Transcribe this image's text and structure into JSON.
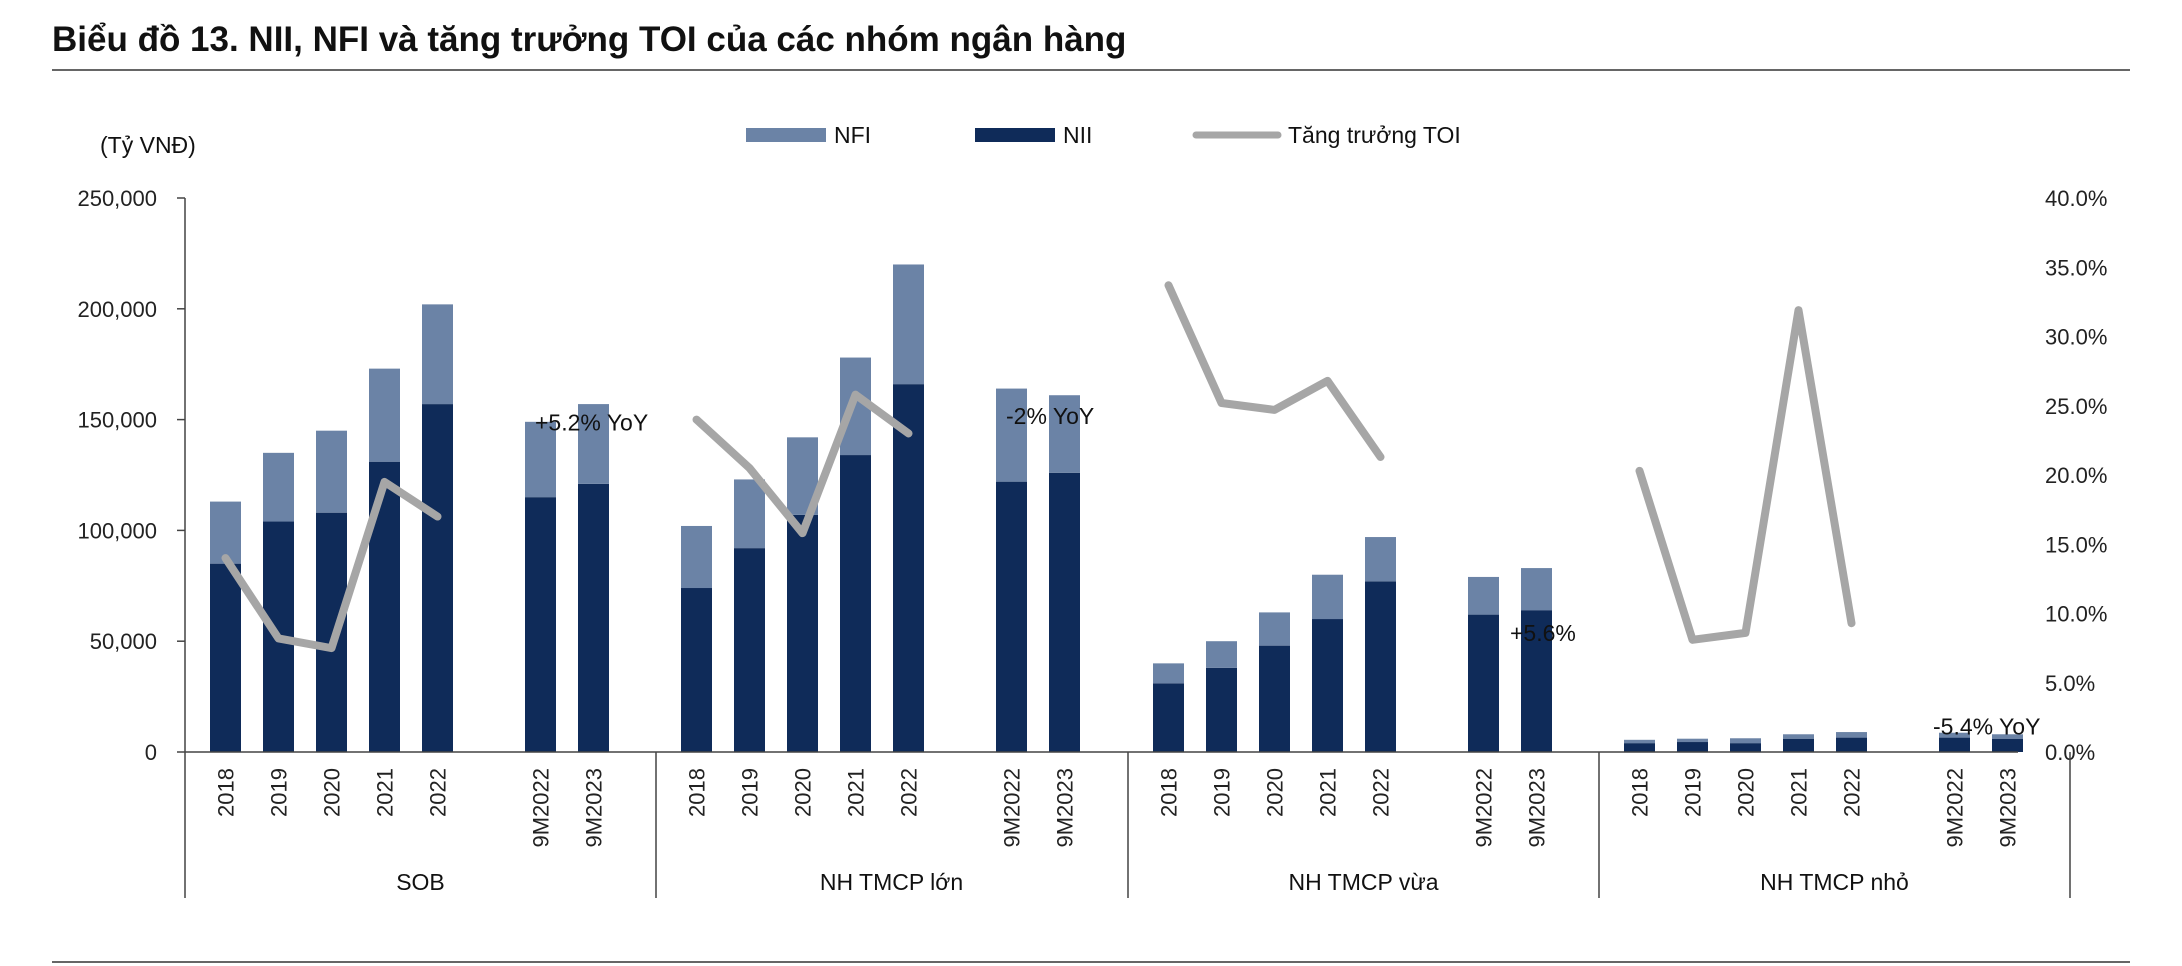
{
  "chart_data": {
    "type": "bar",
    "title": "Biểu đồ 13. NII, NFI và tăng trưởng TOI của các nhóm ngân hàng",
    "ylabel": "(Tỷ VNĐ)",
    "ylim": [
      0,
      250000
    ],
    "y_ticks": [
      "0",
      "50,000",
      "100,000",
      "150,000",
      "200,000",
      "250,000"
    ],
    "y2lim": [
      0,
      40
    ],
    "y2_ticks": [
      "0.0%",
      "5.0%",
      "10.0%",
      "15.0%",
      "20.0%",
      "25.0%",
      "30.0%",
      "35.0%",
      "40.0%"
    ],
    "legend": {
      "placement": "top-center",
      "items": [
        {
          "name": "NFI",
          "color": "#6b83a6"
        },
        {
          "name": "NII",
          "color": "#0f2b59"
        },
        {
          "name": "Tăng trưởng TOI",
          "color": "#a6a6a6"
        }
      ]
    },
    "groups": [
      {
        "name": "SOB",
        "categories": [
          "2018",
          "2019",
          "2020",
          "2021",
          "2022",
          "9M2022",
          "9M2023"
        ],
        "nii": [
          85000,
          104000,
          108000,
          131000,
          157000,
          115000,
          121000
        ],
        "nfi": [
          28000,
          31000,
          37000,
          42000,
          45000,
          34000,
          36000
        ],
        "toi_growth": [
          14.0,
          8.2,
          7.5,
          19.5,
          17.0
        ],
        "annotation": "+5.2% YoY"
      },
      {
        "name": "NH TMCP lớn",
        "categories": [
          "2018",
          "2019",
          "2020",
          "2021",
          "2022",
          "9M2022",
          "9M2023"
        ],
        "nii": [
          74000,
          92000,
          107000,
          134000,
          166000,
          122000,
          126000
        ],
        "nfi": [
          28000,
          31000,
          35000,
          44000,
          54000,
          42000,
          35000
        ],
        "toi_growth": [
          24.0,
          20.5,
          15.8,
          25.8,
          23.0
        ],
        "annotation": "-2% YoY"
      },
      {
        "name": "NH TMCP vừa",
        "categories": [
          "2018",
          "2019",
          "2020",
          "2021",
          "2022",
          "9M2022",
          "9M2023"
        ],
        "nii": [
          31000,
          38000,
          48000,
          60000,
          77000,
          62000,
          64000
        ],
        "nfi": [
          9000,
          12000,
          15000,
          20000,
          20000,
          17000,
          19000
        ],
        "toi_growth": [
          33.7,
          25.2,
          24.7,
          26.8,
          21.3
        ],
        "annotation": "+5.6%"
      },
      {
        "name": "NH TMCP nhỏ",
        "categories": [
          "2018",
          "2019",
          "2020",
          "2021",
          "2022",
          "9M2022",
          "9M2023"
        ],
        "nii": [
          4000,
          4500,
          4000,
          6000,
          6500,
          6500,
          6000
        ],
        "nfi": [
          1500,
          1500,
          2200,
          2000,
          2500,
          2200,
          2000
        ],
        "toi_growth": [
          20.3,
          8.1,
          8.6,
          31.9,
          9.3
        ],
        "annotation": "-5.4% YoY"
      }
    ]
  }
}
